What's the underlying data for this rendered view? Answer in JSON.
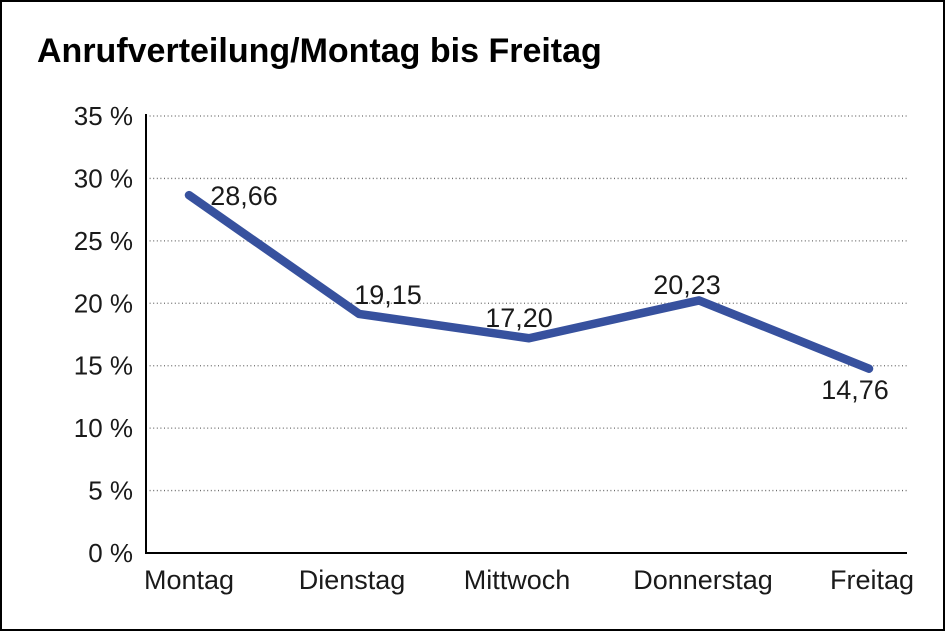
{
  "title": "Anrufverteilung/Montag bis Freitag",
  "chart_data": {
    "type": "line",
    "title": "Anrufverteilung/Montag bis Freitag",
    "categories": [
      "Montag",
      "Dienstag",
      "Mittwoch",
      "Donnerstag",
      "Freitag"
    ],
    "values": [
      28.66,
      19.15,
      17.2,
      20.23,
      14.76
    ],
    "data_labels": [
      "28,66",
      "19,15",
      "17,20",
      "20,23",
      "14,76"
    ],
    "y_tick_labels": [
      "0 %",
      "5 %",
      "10 %",
      "15 %",
      "20 %",
      "25 %",
      "30 %",
      "35 %"
    ],
    "y_tick_values": [
      0,
      5,
      10,
      15,
      20,
      25,
      30,
      35
    ],
    "ylim": [
      0,
      35
    ],
    "xlabel": "",
    "ylabel": "",
    "legend": "none",
    "grid": "horizontal-dotted",
    "line_color": "#37519E",
    "grid_color": "#6b6b6b",
    "axis_color": "#000000",
    "text_color": "#1a1a1a"
  }
}
